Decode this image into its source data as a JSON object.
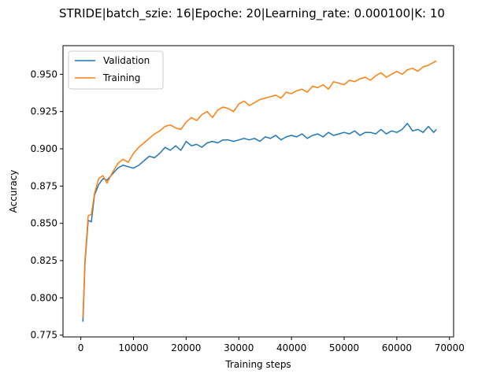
{
  "chart_data": {
    "type": "line",
    "title": "STRIDE|batch_szie: 16|Epoche: 20|Learning_rate: 0.000100|K: 10",
    "xlabel": "Training steps",
    "ylabel": "Accuracy",
    "xlim": [
      -3380,
      70780
    ],
    "ylim": [
      0.7738,
      0.9692
    ],
    "xticks": [
      0,
      10000,
      20000,
      30000,
      40000,
      50000,
      60000,
      70000
    ],
    "yticks": [
      0.775,
      0.8,
      0.825,
      0.85,
      0.875,
      0.9,
      0.925,
      0.95
    ],
    "grid": false,
    "legend_position": "top-left",
    "series": [
      {
        "name": "Validation",
        "color": "#1f77b4",
        "x": [
          400,
          800,
          1400,
          2000,
          2600,
          3400,
          4200,
          5000,
          6000,
          7000,
          8000,
          9000,
          10000,
          11000,
          12000,
          13000,
          14000,
          15000,
          16000,
          17000,
          18000,
          19000,
          20000,
          21000,
          22000,
          23000,
          24000,
          25000,
          26000,
          27000,
          28000,
          29000,
          30000,
          31000,
          32000,
          33000,
          34000,
          35000,
          36000,
          37000,
          38000,
          39000,
          40000,
          41000,
          42000,
          43000,
          44000,
          45000,
          46000,
          47000,
          48000,
          49000,
          50000,
          51000,
          52000,
          53000,
          54000,
          55000,
          56000,
          57000,
          58000,
          59000,
          60000,
          61000,
          62000,
          63000,
          64000,
          65000,
          66000,
          67000,
          67500
        ],
        "values": [
          0.784,
          0.824,
          0.852,
          0.851,
          0.869,
          0.876,
          0.88,
          0.879,
          0.883,
          0.887,
          0.889,
          0.888,
          0.887,
          0.889,
          0.892,
          0.895,
          0.894,
          0.897,
          0.901,
          0.899,
          0.902,
          0.899,
          0.905,
          0.902,
          0.903,
          0.901,
          0.904,
          0.905,
          0.904,
          0.906,
          0.906,
          0.905,
          0.906,
          0.907,
          0.906,
          0.907,
          0.905,
          0.908,
          0.907,
          0.909,
          0.906,
          0.908,
          0.909,
          0.908,
          0.91,
          0.907,
          0.909,
          0.91,
          0.908,
          0.911,
          0.909,
          0.91,
          0.911,
          0.91,
          0.912,
          0.909,
          0.911,
          0.911,
          0.91,
          0.913,
          0.91,
          0.912,
          0.911,
          0.913,
          0.917,
          0.912,
          0.913,
          0.911,
          0.915,
          0.911,
          0.913
        ]
      },
      {
        "name": "Training",
        "color": "#ff7f0e",
        "x": [
          400,
          800,
          1400,
          2000,
          2600,
          3400,
          4200,
          5000,
          6000,
          7000,
          8000,
          9000,
          10000,
          11000,
          12000,
          13000,
          14000,
          15000,
          16000,
          17000,
          18000,
          19000,
          20000,
          21000,
          22000,
          23000,
          24000,
          25000,
          26000,
          27000,
          28000,
          29000,
          30000,
          31000,
          32000,
          33000,
          34000,
          35000,
          36000,
          37000,
          38000,
          39000,
          40000,
          41000,
          42000,
          43000,
          44000,
          45000,
          46000,
          47000,
          48000,
          49000,
          50000,
          51000,
          52000,
          53000,
          54000,
          55000,
          56000,
          57000,
          58000,
          59000,
          60000,
          61000,
          62000,
          63000,
          64000,
          65000,
          66000,
          67000,
          67500
        ],
        "values": [
          0.787,
          0.826,
          0.855,
          0.856,
          0.87,
          0.88,
          0.882,
          0.877,
          0.884,
          0.89,
          0.893,
          0.891,
          0.897,
          0.901,
          0.904,
          0.907,
          0.91,
          0.912,
          0.915,
          0.916,
          0.914,
          0.913,
          0.918,
          0.921,
          0.919,
          0.923,
          0.925,
          0.921,
          0.926,
          0.928,
          0.927,
          0.925,
          0.93,
          0.932,
          0.929,
          0.931,
          0.933,
          0.934,
          0.935,
          0.936,
          0.934,
          0.938,
          0.937,
          0.939,
          0.94,
          0.938,
          0.942,
          0.941,
          0.943,
          0.94,
          0.945,
          0.944,
          0.943,
          0.946,
          0.945,
          0.947,
          0.948,
          0.946,
          0.949,
          0.951,
          0.948,
          0.95,
          0.952,
          0.95,
          0.953,
          0.954,
          0.952,
          0.955,
          0.956,
          0.958,
          0.959
        ]
      }
    ]
  }
}
